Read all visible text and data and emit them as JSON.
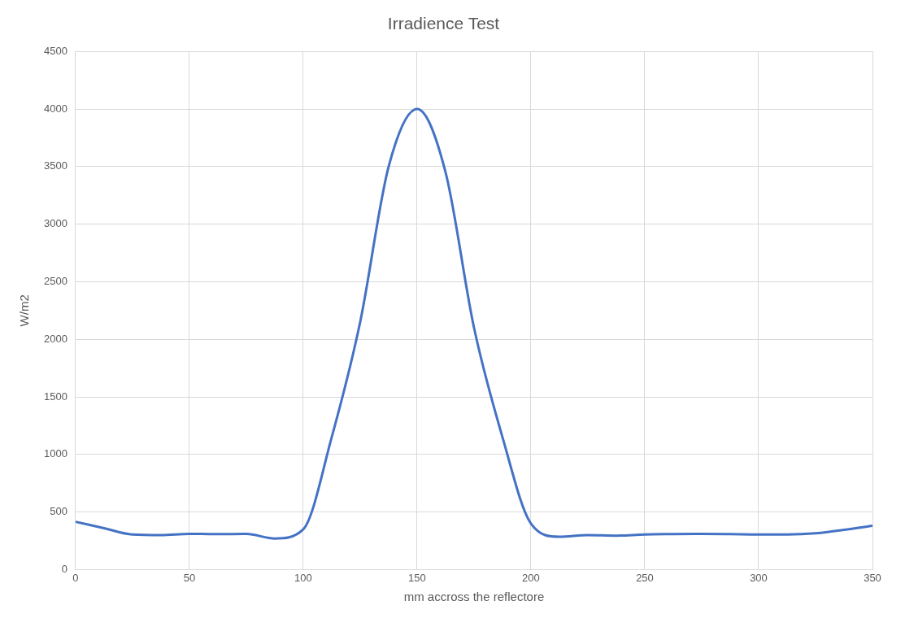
{
  "chart_data": {
    "type": "line",
    "title": "Irradience Test",
    "xlabel": "mm accross the reflectore",
    "ylabel": "W/m2",
    "x": [
      0,
      12.5,
      25,
      37.5,
      50,
      62.5,
      75,
      87.5,
      100,
      112.5,
      125,
      137.5,
      150,
      162.5,
      175,
      187.5,
      200,
      212.5,
      225,
      237.5,
      250,
      262.5,
      275,
      287.5,
      300,
      312.5,
      325,
      337.5,
      350
    ],
    "series": [
      {
        "color": "#4472c4",
        "values": [
          415,
          360,
          305,
          300,
          310,
          308,
          310,
          270,
          350,
          1150,
          2150,
          3500,
          4000,
          3450,
          2100,
          1150,
          400,
          285,
          300,
          295,
          305,
          308,
          310,
          308,
          305,
          305,
          315,
          345,
          380
        ]
      }
    ],
    "xlim": [
      0,
      350
    ],
    "xticks": [
      0,
      50,
      100,
      150,
      200,
      250,
      300,
      350
    ],
    "ylim": [
      0,
      4500
    ],
    "yticks": [
      0,
      500,
      1000,
      1500,
      2000,
      2500,
      3000,
      3500,
      4000,
      4500
    ],
    "grid": true,
    "legend": false,
    "marker": "none",
    "line_style": "solid"
  }
}
